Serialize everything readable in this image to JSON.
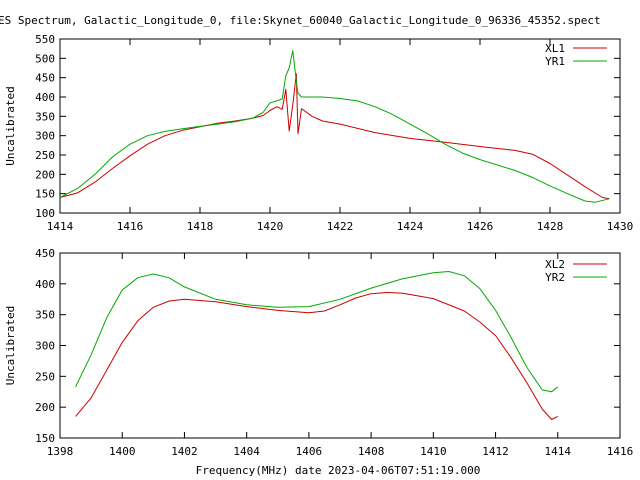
{
  "page_title": "ES Spectrum, Galactic_Longitude_0, file:Skynet_60040_Galactic_Longitude_0_96336_45352.spect",
  "xlabel": "Frequency(MHz) date 2023-04-06T07:51:19.000",
  "colors": {
    "red": "#cc0000",
    "green": "#00aa00",
    "axis": "#000000"
  },
  "chart_data": [
    {
      "type": "line",
      "ylabel": "Uncalibrated",
      "xlim": [
        1414,
        1430
      ],
      "ylim": [
        100,
        550
      ],
      "xticks": [
        1414,
        1416,
        1418,
        1420,
        1422,
        1424,
        1426,
        1428,
        1430
      ],
      "yticks": [
        100,
        150,
        200,
        250,
        300,
        350,
        400,
        450,
        500,
        550
      ],
      "legend": "top-right",
      "series": [
        {
          "name": "XL1",
          "color": "#cc0000",
          "points": [
            [
              1414.0,
              140
            ],
            [
              1414.5,
              152
            ],
            [
              1415.0,
              180
            ],
            [
              1415.5,
              215
            ],
            [
              1416.0,
              248
            ],
            [
              1416.5,
              278
            ],
            [
              1417.0,
              300
            ],
            [
              1417.5,
              314
            ],
            [
              1418.0,
              323
            ],
            [
              1418.5,
              332
            ],
            [
              1419.0,
              338
            ],
            [
              1419.5,
              345
            ],
            [
              1419.8,
              352
            ],
            [
              1420.0,
              365
            ],
            [
              1420.2,
              375
            ],
            [
              1420.35,
              368
            ],
            [
              1420.45,
              420
            ],
            [
              1420.55,
              312
            ],
            [
              1420.65,
              380
            ],
            [
              1420.75,
              460
            ],
            [
              1420.8,
              305
            ],
            [
              1420.9,
              370
            ],
            [
              1421.2,
              350
            ],
            [
              1421.5,
              338
            ],
            [
              1422.0,
              330
            ],
            [
              1423.0,
              308
            ],
            [
              1424.0,
              293
            ],
            [
              1425.0,
              283
            ],
            [
              1426.0,
              272
            ],
            [
              1427.0,
              262
            ],
            [
              1427.5,
              252
            ],
            [
              1428.0,
              228
            ],
            [
              1428.5,
              198
            ],
            [
              1429.0,
              168
            ],
            [
              1429.5,
              140
            ],
            [
              1429.7,
              137
            ]
          ]
        },
        {
          "name": "YR1",
          "color": "#00aa00",
          "points": [
            [
              1414.0,
              140
            ],
            [
              1414.5,
              163
            ],
            [
              1415.0,
              200
            ],
            [
              1415.5,
              245
            ],
            [
              1416.0,
              278
            ],
            [
              1416.5,
              300
            ],
            [
              1417.0,
              311
            ],
            [
              1417.5,
              318
            ],
            [
              1418.0,
              324
            ],
            [
              1418.5,
              330
            ],
            [
              1419.0,
              336
            ],
            [
              1419.5,
              345
            ],
            [
              1419.8,
              360
            ],
            [
              1420.0,
              385
            ],
            [
              1420.2,
              390
            ],
            [
              1420.35,
              395
            ],
            [
              1420.45,
              455
            ],
            [
              1420.55,
              475
            ],
            [
              1420.65,
              520
            ],
            [
              1420.75,
              440
            ],
            [
              1420.8,
              410
            ],
            [
              1420.9,
              400
            ],
            [
              1421.2,
              400
            ],
            [
              1421.5,
              400
            ],
            [
              1422.0,
              396
            ],
            [
              1422.5,
              390
            ],
            [
              1423.0,
              375
            ],
            [
              1423.5,
              355
            ],
            [
              1424.0,
              330
            ],
            [
              1424.5,
              305
            ],
            [
              1425.0,
              278
            ],
            [
              1425.5,
              255
            ],
            [
              1426.0,
              238
            ],
            [
              1427.0,
              210
            ],
            [
              1427.5,
              192
            ],
            [
              1428.0,
              170
            ],
            [
              1428.5,
              150
            ],
            [
              1429.0,
              131
            ],
            [
              1429.3,
              128
            ],
            [
              1429.7,
              137
            ]
          ]
        }
      ]
    },
    {
      "type": "line",
      "ylabel": "Uncalibrated",
      "xlim": [
        1398,
        1416
      ],
      "ylim": [
        150,
        450
      ],
      "xticks": [
        1398,
        1400,
        1402,
        1404,
        1406,
        1408,
        1410,
        1412,
        1414,
        1416
      ],
      "yticks": [
        150,
        200,
        250,
        300,
        350,
        400,
        450
      ],
      "legend": "top-right",
      "series": [
        {
          "name": "XL2",
          "color": "#cc0000",
          "points": [
            [
              1398.5,
              185
            ],
            [
              1399.0,
              215
            ],
            [
              1399.5,
              260
            ],
            [
              1400.0,
              305
            ],
            [
              1400.5,
              340
            ],
            [
              1401.0,
              362
            ],
            [
              1401.5,
              372
            ],
            [
              1402.0,
              375
            ],
            [
              1403.0,
              371
            ],
            [
              1404.0,
              363
            ],
            [
              1405.0,
              357
            ],
            [
              1406.0,
              353
            ],
            [
              1406.5,
              356
            ],
            [
              1407.0,
              366
            ],
            [
              1407.5,
              377
            ],
            [
              1408.0,
              384
            ],
            [
              1408.5,
              386
            ],
            [
              1409.0,
              385
            ],
            [
              1410.0,
              376
            ],
            [
              1411.0,
              356
            ],
            [
              1411.5,
              338
            ],
            [
              1412.0,
              316
            ],
            [
              1412.5,
              280
            ],
            [
              1413.0,
              240
            ],
            [
              1413.5,
              197
            ],
            [
              1413.8,
              180
            ],
            [
              1414.0,
              185
            ]
          ]
        },
        {
          "name": "YR2",
          "color": "#00aa00",
          "points": [
            [
              1398.5,
              233
            ],
            [
              1399.0,
              285
            ],
            [
              1399.5,
              345
            ],
            [
              1400.0,
              390
            ],
            [
              1400.5,
              410
            ],
            [
              1401.0,
              416
            ],
            [
              1401.5,
              410
            ],
            [
              1402.0,
              395
            ],
            [
              1403.0,
              375
            ],
            [
              1404.0,
              366
            ],
            [
              1405.0,
              362
            ],
            [
              1406.0,
              363
            ],
            [
              1407.0,
              375
            ],
            [
              1408.0,
              393
            ],
            [
              1409.0,
              408
            ],
            [
              1410.0,
              418
            ],
            [
              1410.5,
              420
            ],
            [
              1411.0,
              413
            ],
            [
              1411.5,
              392
            ],
            [
              1412.0,
              357
            ],
            [
              1412.5,
              313
            ],
            [
              1413.0,
              265
            ],
            [
              1413.5,
              228
            ],
            [
              1413.8,
              225
            ],
            [
              1414.0,
              233
            ]
          ]
        }
      ]
    }
  ]
}
